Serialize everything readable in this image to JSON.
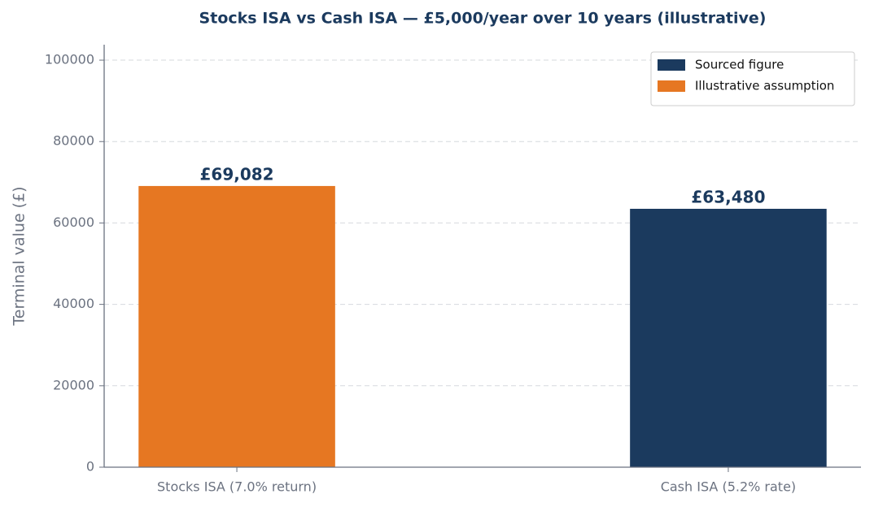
{
  "chart_data": {
    "type": "bar",
    "title": "Stocks ISA vs Cash ISA — £5,000/year over 10 years (illustrative)",
    "y_label": "Terminal value (£)",
    "categories": [
      "Stocks ISA (7.0% return)",
      "Cash ISA (5.2% rate)"
    ],
    "values": [
      69082,
      63480
    ],
    "value_labels": [
      "£69,082",
      "£63,480"
    ],
    "colors": [
      "#e67722",
      "#1b3a5e"
    ],
    "ylim": [
      0,
      103800
    ],
    "yticks": [
      0,
      20000,
      40000,
      60000,
      80000,
      100000
    ],
    "grid": true,
    "legend_position": "upper right",
    "legend": [
      {
        "name": "Sourced figure",
        "color": "#1b3a5e"
      },
      {
        "name": "Illustrative assumption",
        "color": "#e67722"
      }
    ]
  }
}
